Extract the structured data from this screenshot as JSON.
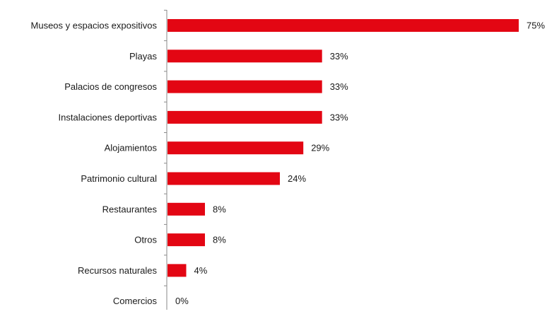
{
  "chart_data": {
    "type": "bar",
    "orientation": "horizontal",
    "categories": [
      "Museos y espacios expositivos",
      "Playas",
      "Palacios de congresos",
      "Instalaciones deportivas",
      "Alojamientos",
      "Patrimonio cultural",
      "Restaurantes",
      "Otros",
      "Recursos naturales",
      "Comercios"
    ],
    "values": [
      75,
      33,
      33,
      33,
      29,
      24,
      8,
      8,
      4,
      0
    ],
    "value_labels": [
      "75%",
      "33%",
      "33%",
      "33%",
      "29%",
      "24%",
      "8%",
      "8%",
      "4%",
      "0%"
    ],
    "unit": "%",
    "xlim": [
      0,
      75
    ],
    "grid": false,
    "legend": "none",
    "title": "",
    "xlabel": "",
    "ylabel": "",
    "colors": {
      "bar": "#e30613",
      "axis": "#8a8a8a",
      "text": "#1a1a1a"
    }
  }
}
